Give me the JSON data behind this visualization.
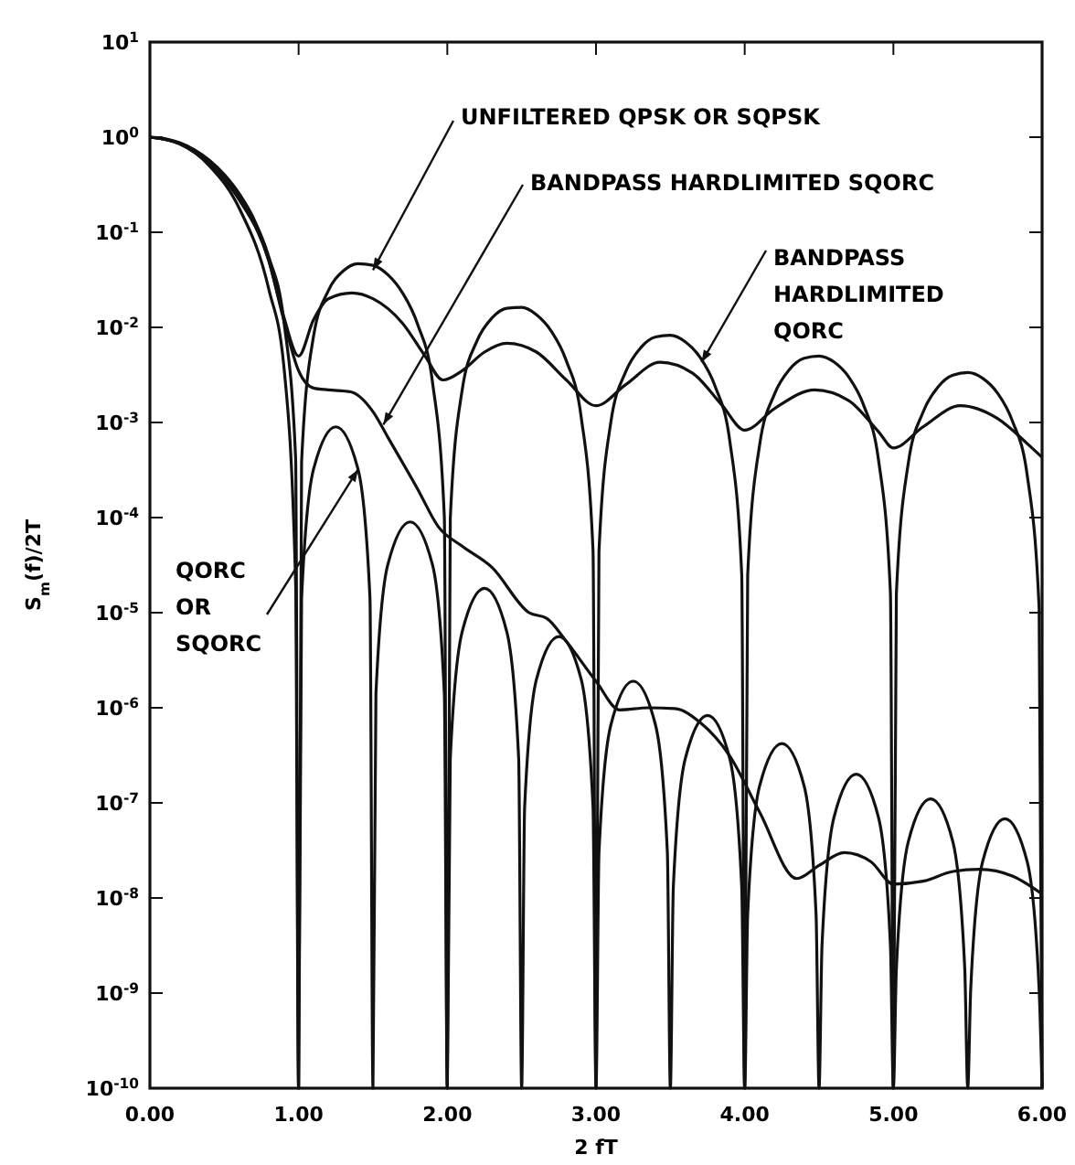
{
  "chart_data": {
    "type": "line",
    "xlabel": "2 fT",
    "ylabel": "S$_{m}$(f)/2T",
    "log": "y",
    "grid": false,
    "line_style": "solid",
    "xlim": [
      0,
      6
    ],
    "xticks": [
      {
        "value": 0,
        "label": "0.00"
      },
      {
        "value": 1,
        "label": "1.00"
      },
      {
        "value": 2,
        "label": "2.00"
      },
      {
        "value": 3,
        "label": "3.00"
      },
      {
        "value": 4,
        "label": "4.00"
      },
      {
        "value": 5,
        "label": "5.00"
      },
      {
        "value": 6,
        "label": "6.00"
      }
    ],
    "ylim": [
      1e-10,
      10
    ],
    "yticks": [
      {
        "value": 10,
        "label": "10$^{1}$"
      },
      {
        "value": 1,
        "label": "10$^{0}$"
      },
      {
        "value": 0.1,
        "label": "10$^{-1}$"
      },
      {
        "value": 0.01,
        "label": "10$^{-2}$"
      },
      {
        "value": 0.001,
        "label": "10$^{-3}$"
      },
      {
        "value": 0.0001,
        "label": "10$^{-4}$"
      },
      {
        "value": 1e-05,
        "label": "10$^{-5}$"
      },
      {
        "value": 1e-06,
        "label": "10$^{-6}$"
      },
      {
        "value": 1e-07,
        "label": "10$^{-7}$"
      },
      {
        "value": 1e-08,
        "label": "10$^{-8}$"
      },
      {
        "value": 1e-09,
        "label": "10$^{-9}$"
      },
      {
        "value": 1e-10,
        "label": "10$^{-10}$"
      }
    ],
    "series": [
      {
        "color": "#111111",
        "x": [
          0,
          0.1,
          0.2,
          0.3,
          0.4,
          0.5,
          0.6,
          0.7,
          0.8,
          0.9,
          0.98,
          1.0,
          1.02,
          1.1,
          1.2,
          1.3,
          1.4,
          1.5,
          1.6,
          1.7,
          1.8,
          1.9,
          1.98,
          2.0,
          2.02,
          2.1,
          2.2,
          2.3,
          2.4,
          2.5,
          2.6,
          2.7,
          2.8,
          2.9,
          2.98,
          3.0,
          3.02,
          3.1,
          3.2,
          3.3,
          3.4,
          3.5,
          3.6,
          3.7,
          3.8,
          3.9,
          3.98,
          4.0,
          4.02,
          4.1,
          4.2,
          4.3,
          4.4,
          4.5,
          4.6,
          4.7,
          4.8,
          4.9,
          4.98,
          5.0,
          5.02,
          5.1,
          5.2,
          5.3,
          5.4,
          5.5,
          5.6,
          5.7,
          5.8,
          5.9,
          5.98,
          6.0
        ],
        "values": [
          1,
          0.968,
          0.875,
          0.737,
          0.573,
          0.405,
          0.255,
          0.137,
          0.0547,
          0.0119,
          0.000416,
          1e-10,
          0.000384,
          0.008,
          0.0243,
          0.0392,
          0.0468,
          0.045,
          0.0358,
          0.0229,
          0.0108,
          0.00268,
          0.000102,
          1e-10,
          9.78e-05,
          0.00219,
          0.00723,
          0.01254,
          0.0159,
          0.0162,
          0.01356,
          0.0091,
          0.00447,
          0.00115,
          4.5e-05,
          1e-10,
          4.38e-05,
          0.00101,
          0.00342,
          0.00609,
          0.00793,
          0.00827,
          0.00707,
          0.00484,
          0.00242,
          0.000636,
          2.52e-05,
          1e-10,
          2.47e-05,
          0.000576,
          0.00198,
          0.00359,
          0.00473,
          0.005,
          0.00433,
          0.003,
          0.00152,
          0.000403,
          1.61e-05,
          1e-10,
          1.58e-05,
          0.000372,
          0.00129,
          0.00236,
          0.00314,
          0.00335,
          0.00292,
          0.00204,
          0.00104,
          0.000278,
          1.12e-05,
          1e-10
        ]
      },
      {
        "color": "#111111",
        "x": [
          0,
          0.2,
          0.4,
          0.6,
          0.8,
          0.9,
          1.0,
          1.1,
          1.2,
          1.35,
          1.5,
          1.6,
          1.8,
          1.94,
          2.1,
          2.3,
          2.55,
          2.67,
          2.8,
          3.0,
          3.16,
          3.35,
          3.53,
          3.7,
          3.9,
          4.1,
          4.35,
          4.5,
          4.67,
          4.85,
          5.0,
          5.2,
          5.4,
          5.58,
          5.8,
          6.0
        ],
        "values": [
          1,
          0.85,
          0.52,
          0.22,
          0.05,
          0.012,
          0.0035,
          0.0023,
          0.0022,
          0.0021,
          0.0013,
          0.0007,
          0.0002,
          8e-05,
          5e-05,
          3e-05,
          1e-05,
          8.7e-06,
          5e-06,
          1.9e-06,
          9.5e-07,
          1e-06,
          9.8e-07,
          7e-07,
          3.1e-07,
          8e-08,
          1.6e-08,
          2.2e-08,
          3e-08,
          2.4e-08,
          1.4e-08,
          1.5e-08,
          1.9e-08,
          2e-08,
          1.7e-08,
          1.1e-08
        ]
      },
      {
        "color": "#111111",
        "x": [
          0,
          0.2,
          0.4,
          0.6,
          0.8,
          0.9,
          1.0,
          1.1,
          1.2,
          1.36,
          1.5,
          1.7,
          1.85,
          1.97,
          2.1,
          2.25,
          2.4,
          2.6,
          2.8,
          3.0,
          3.2,
          3.43,
          3.65,
          3.85,
          4.0,
          4.2,
          4.47,
          4.7,
          4.9,
          5.0,
          5.2,
          5.45,
          5.7,
          5.9,
          6.0
        ],
        "values": [
          1,
          0.86,
          0.53,
          0.23,
          0.05,
          0.013,
          0.005,
          0.012,
          0.02,
          0.023,
          0.02,
          0.011,
          0.005,
          0.0028,
          0.0035,
          0.0055,
          0.0068,
          0.0055,
          0.0028,
          0.0015,
          0.0025,
          0.0043,
          0.0033,
          0.0015,
          0.00083,
          0.0014,
          0.0022,
          0.0017,
          0.0008,
          0.00054,
          0.0009,
          0.0015,
          0.0011,
          0.0006,
          0.00043
        ]
      },
      {
        "color": "#111111",
        "x": [
          0,
          0.2,
          0.4,
          0.6,
          0.8,
          0.9,
          0.98,
          1.0,
          1.02,
          1.1,
          1.25,
          1.4,
          1.48,
          1.5,
          1.52,
          1.6,
          1.75,
          1.9,
          1.98,
          2.0,
          2.02,
          2.1,
          2.25,
          2.4,
          2.48,
          2.5,
          2.52,
          2.6,
          2.75,
          2.9,
          2.98,
          3.0,
          3.02,
          3.1,
          3.25,
          3.4,
          3.48,
          3.5,
          3.52,
          3.6,
          3.75,
          3.9,
          3.98,
          4.0,
          4.02,
          4.1,
          4.25,
          4.4,
          4.48,
          4.5,
          4.52,
          4.6,
          4.75,
          4.9,
          4.98,
          5.0,
          5.02,
          5.1,
          5.25,
          5.4,
          5.48,
          5.5,
          5.52,
          5.6,
          5.75,
          5.9,
          5.98,
          6.0
        ],
        "values": [
          1,
          0.85,
          0.5,
          0.18,
          0.025,
          0.004,
          2e-05,
          1e-10,
          1.4e-05,
          0.00032,
          0.0009,
          0.00032,
          1.4e-05,
          1e-10,
          1.4e-06,
          3.2e-05,
          9e-05,
          3.2e-05,
          1.4e-06,
          1e-10,
          2.9e-07,
          6.3e-06,
          1.8e-05,
          6.3e-06,
          2.9e-07,
          1e-10,
          9e-08,
          2e-06,
          5.6e-06,
          2e-06,
          9e-08,
          1e-10,
          3e-08,
          6.6e-07,
          1.9e-06,
          6.6e-07,
          3e-08,
          1e-10,
          1.3e-08,
          2.9e-07,
          8.3e-07,
          2.9e-07,
          1.3e-08,
          1e-10,
          6.7e-09,
          1.5e-07,
          4.2e-07,
          1.5e-07,
          6.7e-09,
          1e-10,
          3.2e-09,
          7e-08,
          2e-07,
          7e-08,
          3.2e-09,
          1e-10,
          1.8e-09,
          3.9e-08,
          1.1e-07,
          3.9e-08,
          1.8e-09,
          1e-10,
          1.1e-09,
          2.4e-08,
          6.8e-08,
          2.4e-08,
          1.1e-09,
          1e-10
        ]
      }
    ],
    "annotations": [
      {
        "text": "UNFILTERED QPSK OR SQPSK",
        "x": 1.5,
        "y": 0.04
      },
      {
        "text": "BANDPASS HARDLIMITED SQORC",
        "x": 1.57,
        "y": 0.00095
      },
      {
        "text": "BANDPASS\nHARDLIMITED\nQORC",
        "x": 3.71,
        "y": 0.0043
      },
      {
        "text": "QORC\nOR\nSQORC",
        "x": 1.4,
        "y": 0.00032
      }
    ]
  }
}
